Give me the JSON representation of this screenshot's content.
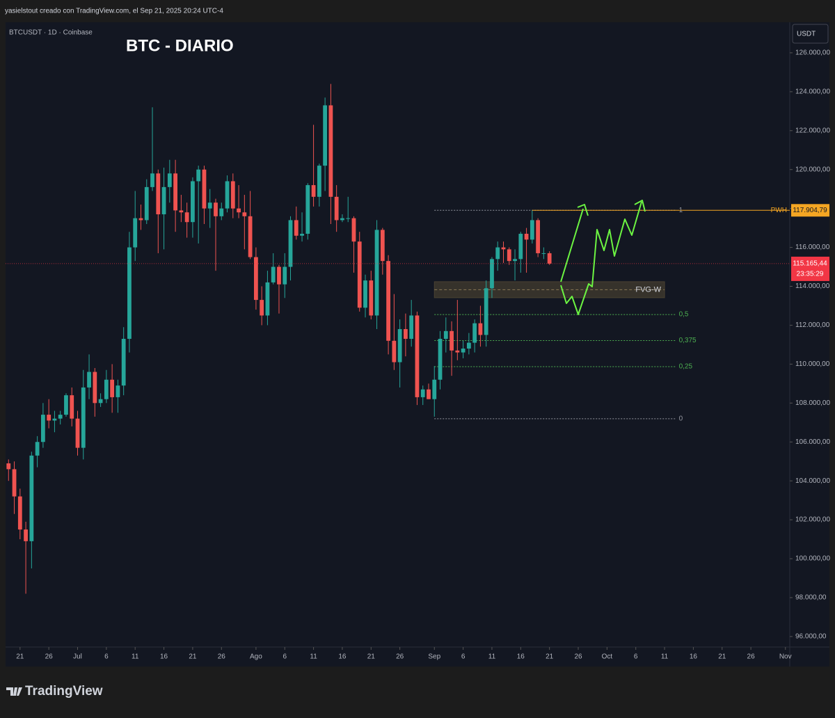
{
  "header": "yasielstout creado con TradingView.com, el Sep 21, 2025 20:24 UTC-4",
  "footer": "TradingView",
  "chart_data": {
    "type": "candlestick",
    "title": "BTC - DIARIO",
    "symbol": "BTCUSDT · 1D · Coinbase",
    "currency": "USDT",
    "up_color": "#26a69a",
    "down_color": "#ef5350",
    "x": [
      "2025-06-19",
      "2025-06-20",
      "2025-06-21",
      "2025-06-22",
      "2025-06-23",
      "2025-06-24",
      "2025-06-25",
      "2025-06-26",
      "2025-06-27",
      "2025-06-28",
      "2025-06-29",
      "2025-06-30",
      "2025-07-01",
      "2025-07-02",
      "2025-07-03",
      "2025-07-04",
      "2025-07-05",
      "2025-07-06",
      "2025-07-07",
      "2025-07-08",
      "2025-07-09",
      "2025-07-10",
      "2025-07-11",
      "2025-07-12",
      "2025-07-13",
      "2025-07-14",
      "2025-07-15",
      "2025-07-16",
      "2025-07-17",
      "2025-07-18",
      "2025-07-19",
      "2025-07-20",
      "2025-07-21",
      "2025-07-22",
      "2025-07-23",
      "2025-07-24",
      "2025-07-25",
      "2025-07-26",
      "2025-07-27",
      "2025-07-28",
      "2025-07-29",
      "2025-07-30",
      "2025-07-31",
      "2025-08-01",
      "2025-08-02",
      "2025-08-03",
      "2025-08-04",
      "2025-08-05",
      "2025-08-06",
      "2025-08-07",
      "2025-08-08",
      "2025-08-09",
      "2025-08-10",
      "2025-08-11",
      "2025-08-12",
      "2025-08-13",
      "2025-08-14",
      "2025-08-15",
      "2025-08-16",
      "2025-08-17",
      "2025-08-18",
      "2025-08-19",
      "2025-08-20",
      "2025-08-21",
      "2025-08-22",
      "2025-08-23",
      "2025-08-24",
      "2025-08-25",
      "2025-08-26",
      "2025-08-27",
      "2025-08-28",
      "2025-08-29",
      "2025-08-30",
      "2025-08-31",
      "2025-09-01",
      "2025-09-02",
      "2025-09-03",
      "2025-09-04",
      "2025-09-05",
      "2025-09-06",
      "2025-09-07",
      "2025-09-08",
      "2025-09-09",
      "2025-09-10",
      "2025-09-11",
      "2025-09-12",
      "2025-09-13",
      "2025-09-14",
      "2025-09-15",
      "2025-09-16",
      "2025-09-17",
      "2025-09-18",
      "2025-09-19",
      "2025-09-20",
      "2025-09-21"
    ],
    "open": [
      104900,
      104600,
      103200,
      101500,
      100900,
      105300,
      106000,
      107400,
      107100,
      107200,
      107400,
      108400,
      107200,
      105700,
      108800,
      109600,
      108000,
      108200,
      109200,
      108300,
      108900,
      111300,
      116000,
      117500,
      117400,
      119100,
      119800,
      117700,
      119100,
      119800,
      117900,
      117800,
      117300,
      119400,
      120000,
      118000,
      118300,
      117600,
      118000,
      119400,
      118000,
      117800,
      117600,
      115500,
      113300,
      112500,
      114200,
      115000,
      114100,
      115000,
      117400,
      116600,
      116700,
      119200,
      118600,
      120200,
      123300,
      118600,
      117400,
      117500,
      117500,
      116300,
      112900,
      114300,
      112500,
      116900,
      115300,
      111200,
      110100,
      111800,
      111300,
      112500,
      108300,
      108700,
      108200,
      109200,
      111300,
      111700,
      110700,
      110600,
      110800,
      111100,
      112100,
      111500,
      113900,
      115400,
      116000,
      115900,
      115300,
      115400,
      116700,
      116400,
      117400,
      115700,
      115700
    ],
    "high": [
      105100,
      105000,
      103600,
      101900,
      105500,
      106300,
      108000,
      108200,
      107600,
      107600,
      108500,
      108800,
      107600,
      109700,
      110500,
      109800,
      108500,
      109700,
      110000,
      109200,
      111900,
      116800,
      118900,
      118200,
      119500,
      123200,
      120000,
      120100,
      120500,
      120500,
      118700,
      118300,
      119600,
      120200,
      120200,
      119000,
      118500,
      118300,
      119700,
      119800,
      119200,
      118700,
      118900,
      116000,
      114000,
      114800,
      115700,
      115100,
      115700,
      117600,
      118100,
      117800,
      119300,
      122300,
      120300,
      123700,
      124400,
      119200,
      117700,
      118600,
      117600,
      116800,
      114600,
      114800,
      117400,
      117000,
      115600,
      113600,
      112300,
      112600,
      113300,
      112700,
      108900,
      109000,
      109900,
      111700,
      112400,
      112200,
      113300,
      111200,
      111600,
      112300,
      113000,
      114300,
      115500,
      116300,
      116300,
      116000,
      115900,
      116800,
      117000,
      117900,
      117500,
      116000,
      115800
    ],
    "low": [
      104000,
      102300,
      101000,
      98200,
      99500,
      104700,
      105700,
      106700,
      106500,
      106900,
      107300,
      106800,
      105300,
      105100,
      108200,
      107300,
      107800,
      108000,
      107500,
      107500,
      108400,
      110600,
      115300,
      116900,
      117200,
      118900,
      115700,
      115900,
      118300,
      116800,
      117300,
      116500,
      116500,
      116200,
      117200,
      117000,
      114800,
      117400,
      117800,
      117500,
      117500,
      115900,
      115400,
      112800,
      112000,
      112000,
      114100,
      112600,
      113400,
      114300,
      116400,
      116300,
      116400,
      118100,
      118100,
      118900,
      117200,
      116800,
      117300,
      117300,
      114700,
      112700,
      112400,
      112300,
      111800,
      114600,
      110500,
      109700,
      108800,
      110400,
      110900,
      107900,
      107900,
      108200,
      107300,
      108700,
      110600,
      109400,
      110200,
      110300,
      110500,
      110600,
      110900,
      110900,
      113400,
      114800,
      115200,
      115100,
      114300,
      114700,
      114700,
      116200,
      115500,
      115400,
      115100
    ],
    "close": [
      104600,
      103200,
      101500,
      100900,
      105300,
      106000,
      107400,
      107100,
      107200,
      107400,
      108400,
      107200,
      105700,
      108800,
      109600,
      108000,
      108200,
      109200,
      108300,
      108900,
      111300,
      116000,
      117500,
      117400,
      119100,
      119800,
      117700,
      119100,
      119800,
      117900,
      117800,
      117300,
      119400,
      120000,
      118000,
      118300,
      117600,
      118000,
      119400,
      118000,
      117800,
      117600,
      115500,
      113300,
      112500,
      114200,
      115000,
      114100,
      115000,
      117400,
      116600,
      116700,
      119200,
      118600,
      120200,
      123300,
      118600,
      117400,
      117500,
      117500,
      116300,
      112900,
      114300,
      112500,
      116900,
      115300,
      111200,
      110100,
      111800,
      111300,
      112500,
      108300,
      108700,
      108200,
      109200,
      111300,
      111700,
      110700,
      110600,
      110800,
      111100,
      112100,
      111500,
      113900,
      115400,
      116000,
      115900,
      115300,
      115400,
      116700,
      116400,
      117400,
      115700,
      115700,
      115165.44
    ],
    "xlim": [
      "2025-06-18",
      "2025-11-02"
    ],
    "xticks": [
      {
        "value": "2025-06-21",
        "label": "21"
      },
      {
        "value": "2025-06-26",
        "label": "26"
      },
      {
        "value": "2025-07-01",
        "label": "Jul"
      },
      {
        "value": "2025-07-06",
        "label": "6"
      },
      {
        "value": "2025-07-11",
        "label": "11"
      },
      {
        "value": "2025-07-16",
        "label": "16"
      },
      {
        "value": "2025-07-21",
        "label": "21"
      },
      {
        "value": "2025-07-26",
        "label": "26"
      },
      {
        "value": "2025-08-01",
        "label": "Ago"
      },
      {
        "value": "2025-08-06",
        "label": "6"
      },
      {
        "value": "2025-08-11",
        "label": "11"
      },
      {
        "value": "2025-08-16",
        "label": "16"
      },
      {
        "value": "2025-08-21",
        "label": "21"
      },
      {
        "value": "2025-08-26",
        "label": "26"
      },
      {
        "value": "2025-09-01",
        "label": "Sep"
      },
      {
        "value": "2025-09-06",
        "label": "6"
      },
      {
        "value": "2025-09-11",
        "label": "11"
      },
      {
        "value": "2025-09-16",
        "label": "16"
      },
      {
        "value": "2025-09-21",
        "label": "21"
      },
      {
        "value": "2025-09-26",
        "label": "26"
      },
      {
        "value": "2025-10-01",
        "label": "Oct"
      },
      {
        "value": "2025-10-06",
        "label": "6"
      },
      {
        "value": "2025-10-11",
        "label": "11"
      },
      {
        "value": "2025-10-16",
        "label": "16"
      },
      {
        "value": "2025-10-21",
        "label": "21"
      },
      {
        "value": "2025-10-26",
        "label": "26"
      },
      {
        "value": "2025-11-01",
        "label": "Nov"
      }
    ],
    "ylim": [
      95460,
      127570
    ],
    "yticks": [
      {
        "value": 96000,
        "label": "96.000,00"
      },
      {
        "value": 98000,
        "label": "98.000,00"
      },
      {
        "value": 100000,
        "label": "100.000,00"
      },
      {
        "value": 102000,
        "label": "102.000,00"
      },
      {
        "value": 104000,
        "label": "104.000,00"
      },
      {
        "value": 106000,
        "label": "106.000,00"
      },
      {
        "value": 108000,
        "label": "108.000,00"
      },
      {
        "value": 110000,
        "label": "110.000,00"
      },
      {
        "value": 112000,
        "label": "112.000,00"
      },
      {
        "value": 114000,
        "label": "114.000,00"
      },
      {
        "value": 116000,
        "label": "116.000,00"
      },
      {
        "value": 118000,
        "label": "118.000,00"
      },
      {
        "value": 120000,
        "label": "120.000,00"
      },
      {
        "value": 122000,
        "label": "122.000,00"
      },
      {
        "value": 124000,
        "label": "124.000,00"
      },
      {
        "value": 126000,
        "label": "126.000,00"
      }
    ],
    "pwh": {
      "name": "PWH",
      "value": 117904.79,
      "value_label": "117.904,79",
      "color": "#f5a623",
      "start": "2025-09-18"
    },
    "last_price": {
      "value": 115165.44,
      "label": "115.165,44",
      "countdown": "23:35:29",
      "color": "#f23645"
    },
    "fib": {
      "start": "2025-09-01",
      "end": "2025-10-13",
      "levels": [
        {
          "value": 117905,
          "label": "1",
          "color": "#9598a1"
        },
        {
          "value": 112549,
          "label": "0,5",
          "color": "#4caf50"
        },
        {
          "value": 111210,
          "label": "0,375",
          "color": "#4caf50"
        },
        {
          "value": 109870,
          "label": "0,25",
          "color": "#4caf50"
        },
        {
          "value": 107192,
          "label": "0",
          "color": "#9598a1"
        }
      ]
    },
    "fvg": {
      "label": "FVG-W",
      "top": 114236,
      "bottom": 113414,
      "start": "2025-09-01",
      "end": "2025-10-11"
    }
  }
}
